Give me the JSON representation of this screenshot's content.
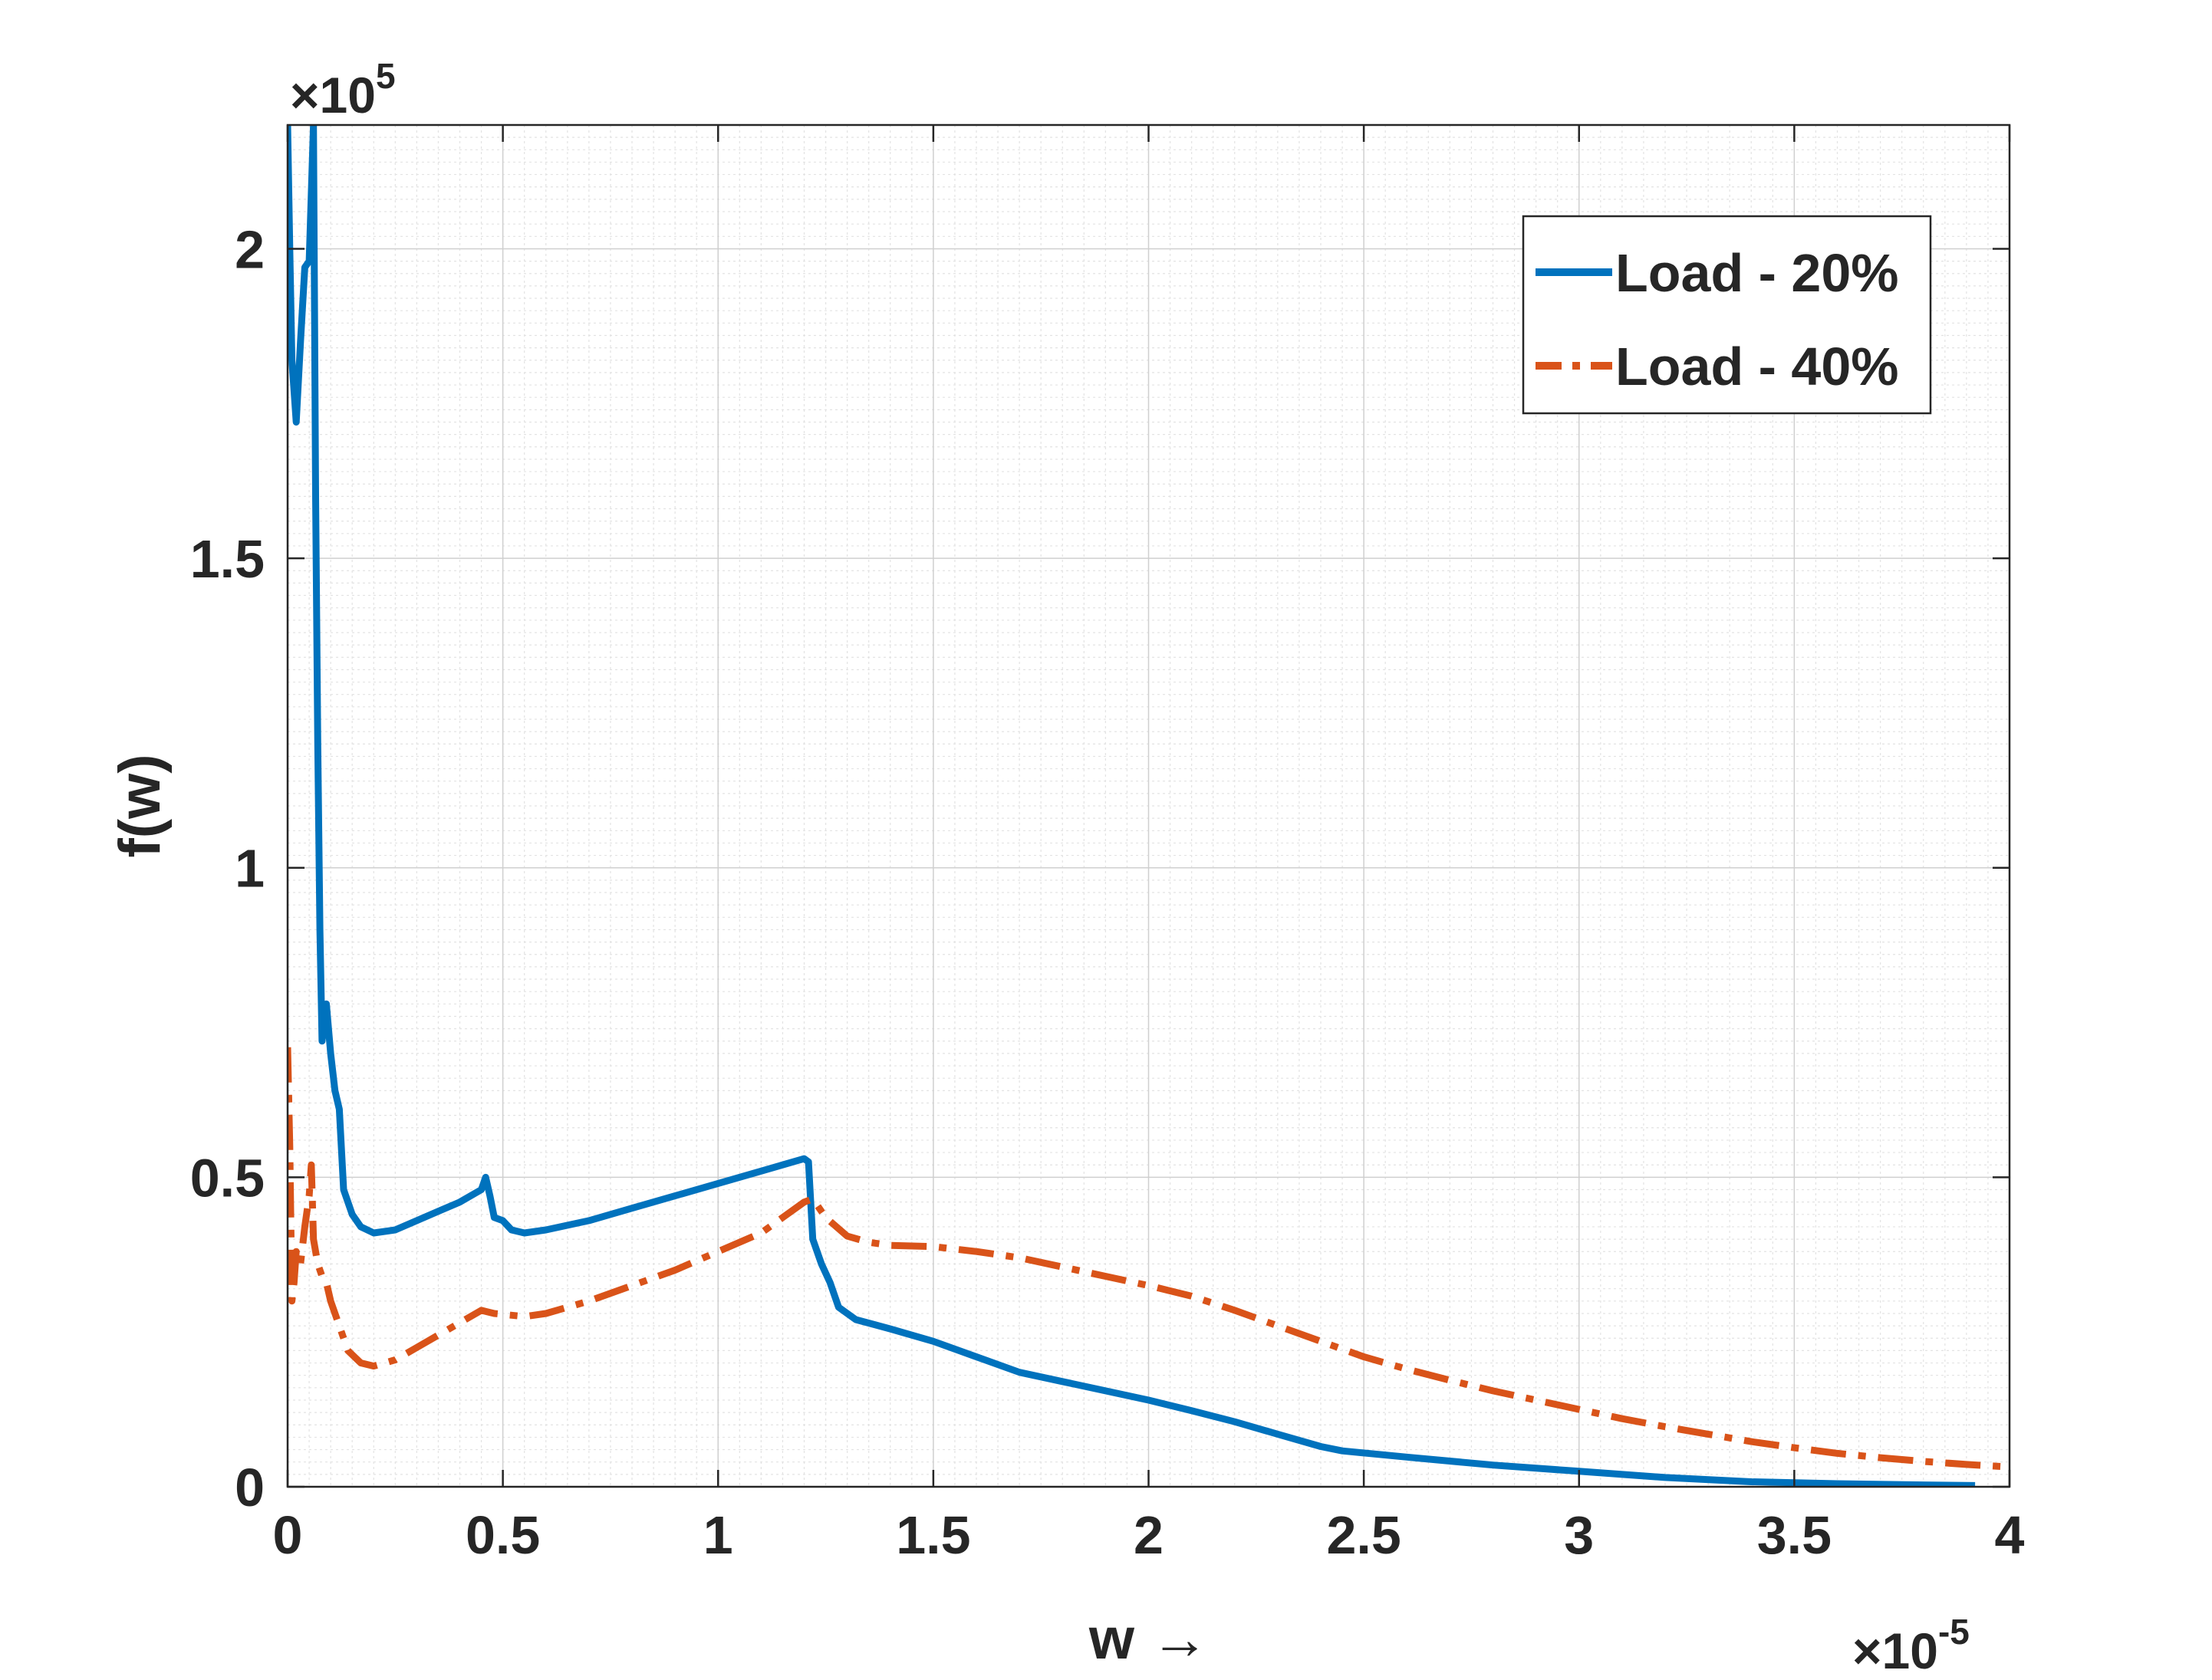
{
  "chart_data": {
    "type": "line",
    "title": "",
    "xlabel": "w →",
    "ylabel": "f(w)",
    "x_exponent_label": "×10",
    "x_exponent": "-5",
    "y_exponent_label": "×10",
    "y_exponent": "5",
    "xlim": [
      0,
      4
    ],
    "ylim": [
      0,
      2.2
    ],
    "xticks": [
      0,
      0.5,
      1,
      1.5,
      2,
      2.5,
      3,
      3.5,
      4
    ],
    "xtick_labels": [
      "0",
      "0.5",
      "1",
      "1.5",
      "2",
      "2.5",
      "3",
      "3.5",
      "4"
    ],
    "yticks": [
      0,
      0.5,
      1,
      1.5,
      2
    ],
    "ytick_labels": [
      "0",
      "0.5",
      "1",
      "1.5",
      "2"
    ],
    "grid": true,
    "minor_grid": true,
    "legend_position": "top-right",
    "series": [
      {
        "name": "Load - 20%",
        "color": "#0072BD",
        "style": "solid",
        "points": [
          [
            0.0,
            2.2
          ],
          [
            0.005,
            2.0
          ],
          [
            0.01,
            1.82
          ],
          [
            0.02,
            1.72
          ],
          [
            0.03,
            1.85
          ],
          [
            0.04,
            1.97
          ],
          [
            0.05,
            1.98
          ],
          [
            0.06,
            2.2
          ],
          [
            0.065,
            1.6
          ],
          [
            0.07,
            1.2
          ],
          [
            0.075,
            0.9
          ],
          [
            0.08,
            0.72
          ],
          [
            0.09,
            0.78
          ],
          [
            0.1,
            0.7
          ],
          [
            0.11,
            0.64
          ],
          [
            0.12,
            0.61
          ],
          [
            0.13,
            0.48
          ],
          [
            0.15,
            0.44
          ],
          [
            0.17,
            0.42
          ],
          [
            0.2,
            0.41
          ],
          [
            0.25,
            0.415
          ],
          [
            0.3,
            0.43
          ],
          [
            0.35,
            0.445
          ],
          [
            0.4,
            0.46
          ],
          [
            0.45,
            0.48
          ],
          [
            0.46,
            0.5
          ],
          [
            0.47,
            0.47
          ],
          [
            0.48,
            0.435
          ],
          [
            0.5,
            0.43
          ],
          [
            0.52,
            0.415
          ],
          [
            0.55,
            0.41
          ],
          [
            0.6,
            0.415
          ],
          [
            0.7,
            0.43
          ],
          [
            0.8,
            0.45
          ],
          [
            0.9,
            0.47
          ],
          [
            1.0,
            0.49
          ],
          [
            1.1,
            0.51
          ],
          [
            1.2,
            0.53
          ],
          [
            1.21,
            0.525
          ],
          [
            1.22,
            0.4
          ],
          [
            1.24,
            0.36
          ],
          [
            1.26,
            0.33
          ],
          [
            1.28,
            0.29
          ],
          [
            1.32,
            0.27
          ],
          [
            1.4,
            0.255
          ],
          [
            1.5,
            0.235
          ],
          [
            1.6,
            0.21
          ],
          [
            1.7,
            0.185
          ],
          [
            1.8,
            0.17
          ],
          [
            1.9,
            0.155
          ],
          [
            2.0,
            0.14
          ],
          [
            2.1,
            0.123
          ],
          [
            2.2,
            0.105
          ],
          [
            2.3,
            0.085
          ],
          [
            2.4,
            0.065
          ],
          [
            2.45,
            0.058
          ],
          [
            2.6,
            0.048
          ],
          [
            2.8,
            0.035
          ],
          [
            3.0,
            0.025
          ],
          [
            3.2,
            0.015
          ],
          [
            3.4,
            0.008
          ],
          [
            3.6,
            0.005
          ],
          [
            3.8,
            0.003
          ],
          [
            3.92,
            0.002
          ]
        ]
      },
      {
        "name": "Load - 40%",
        "color": "#D95319",
        "style": "dashdot",
        "points": [
          [
            0.0,
            0.71
          ],
          [
            0.005,
            0.55
          ],
          [
            0.01,
            0.3
          ],
          [
            0.015,
            0.33
          ],
          [
            0.02,
            0.38
          ],
          [
            0.03,
            0.36
          ],
          [
            0.04,
            0.42
          ],
          [
            0.05,
            0.47
          ],
          [
            0.055,
            0.52
          ],
          [
            0.06,
            0.4
          ],
          [
            0.07,
            0.36
          ],
          [
            0.08,
            0.34
          ],
          [
            0.09,
            0.33
          ],
          [
            0.1,
            0.3
          ],
          [
            0.12,
            0.26
          ],
          [
            0.14,
            0.22
          ],
          [
            0.17,
            0.2
          ],
          [
            0.2,
            0.195
          ],
          [
            0.25,
            0.205
          ],
          [
            0.3,
            0.225
          ],
          [
            0.35,
            0.245
          ],
          [
            0.4,
            0.265
          ],
          [
            0.45,
            0.285
          ],
          [
            0.48,
            0.28
          ],
          [
            0.55,
            0.275
          ],
          [
            0.6,
            0.28
          ],
          [
            0.7,
            0.3
          ],
          [
            0.8,
            0.325
          ],
          [
            0.9,
            0.35
          ],
          [
            1.0,
            0.38
          ],
          [
            1.1,
            0.41
          ],
          [
            1.2,
            0.46
          ],
          [
            1.22,
            0.465
          ],
          [
            1.25,
            0.435
          ],
          [
            1.3,
            0.405
          ],
          [
            1.35,
            0.395
          ],
          [
            1.4,
            0.39
          ],
          [
            1.5,
            0.388
          ],
          [
            1.6,
            0.38
          ],
          [
            1.7,
            0.37
          ],
          [
            1.8,
            0.355
          ],
          [
            1.9,
            0.34
          ],
          [
            2.0,
            0.325
          ],
          [
            2.1,
            0.308
          ],
          [
            2.2,
            0.285
          ],
          [
            2.3,
            0.26
          ],
          [
            2.4,
            0.235
          ],
          [
            2.5,
            0.21
          ],
          [
            2.6,
            0.19
          ],
          [
            2.7,
            0.172
          ],
          [
            2.8,
            0.155
          ],
          [
            2.9,
            0.14
          ],
          [
            3.0,
            0.125
          ],
          [
            3.1,
            0.11
          ],
          [
            3.2,
            0.097
          ],
          [
            3.3,
            0.085
          ],
          [
            3.4,
            0.073
          ],
          [
            3.5,
            0.063
          ],
          [
            3.6,
            0.054
          ],
          [
            3.7,
            0.047
          ],
          [
            3.8,
            0.041
          ],
          [
            3.9,
            0.036
          ],
          [
            4.0,
            0.032
          ]
        ]
      }
    ]
  }
}
